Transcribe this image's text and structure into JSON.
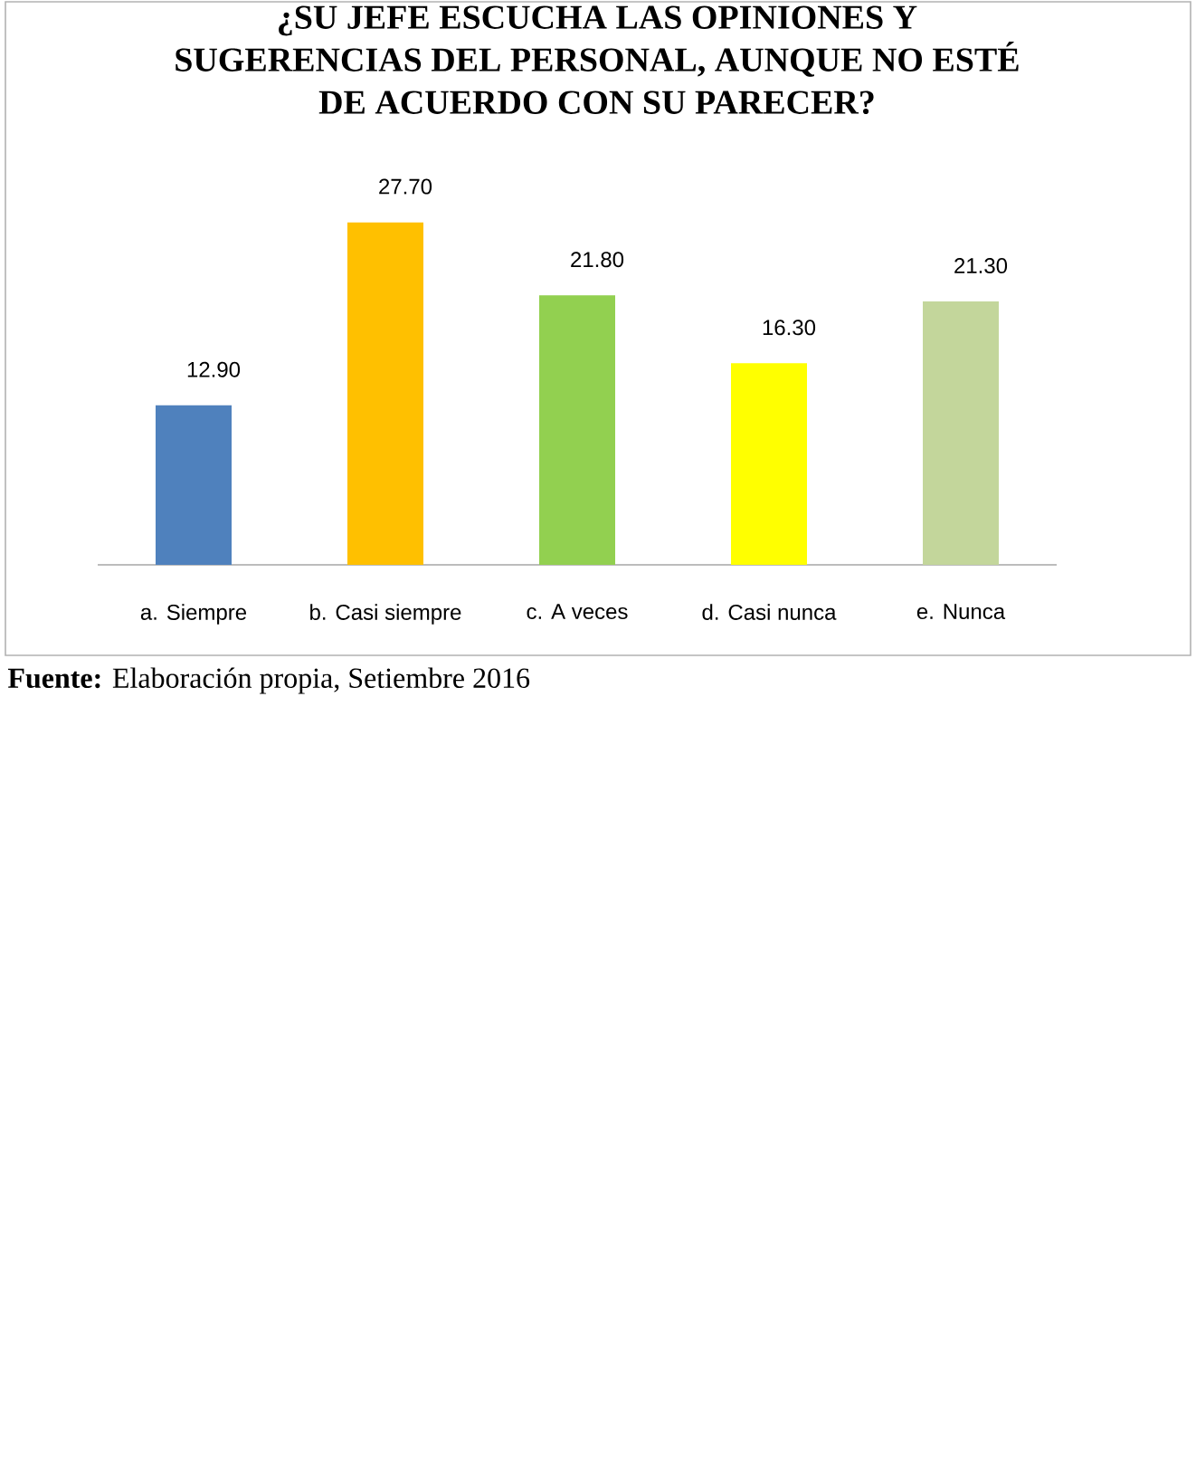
{
  "chart_data": {
    "type": "bar",
    "title": "¿SU JEFE ESCUCHA LAS OPINIONES Y SUGERENCIAS DEL PERSONAL, AUNQUE NO ESTÉ DE ACUERDO CON SU PARECER?",
    "categories": [
      "a. Siempre",
      "b. Casi siempre",
      "c. A veces",
      "d. Casi nunca",
      "e. Nunca"
    ],
    "values": [
      12.9,
      27.7,
      21.8,
      16.3,
      21.3
    ],
    "colors": [
      "#4f81bd",
      "#ffc000",
      "#92d050",
      "#ffff00",
      "#c3d69b"
    ],
    "value_labels": [
      "12.90",
      "27.70",
      "21.80",
      "16.30",
      "21.30"
    ],
    "annotations": [
      "**Fuente:** Elaboración propia, Setiembre 2016"
    ]
  }
}
